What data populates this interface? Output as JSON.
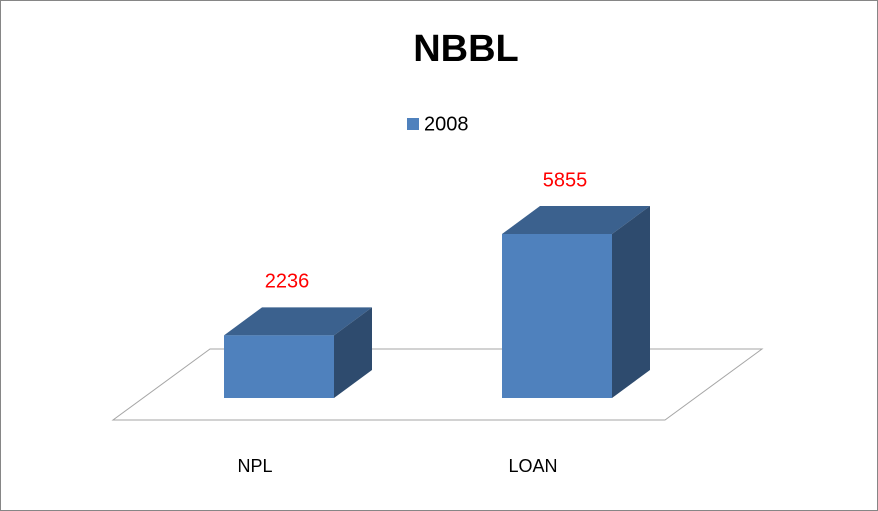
{
  "chart_data": {
    "type": "bar3d",
    "title": "NBBL",
    "categories": [
      "NPL",
      "LOAN"
    ],
    "series": [
      {
        "name": "2008",
        "color": "#4f81bd",
        "values": [
          2236,
          5855
        ]
      }
    ],
    "value_label_color": "#ff0000"
  }
}
